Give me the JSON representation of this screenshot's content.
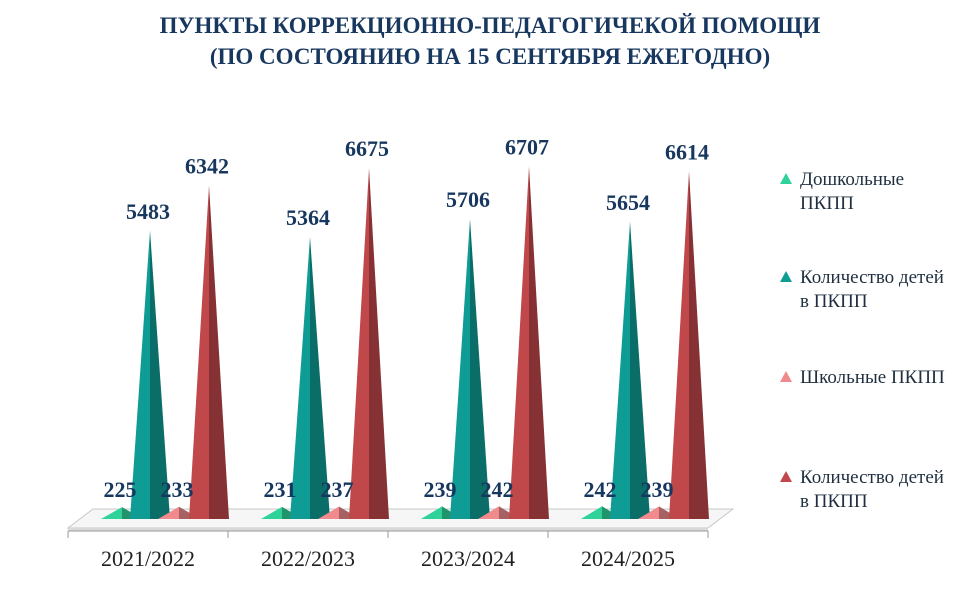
{
  "title_lines": [
    "ПУНКТЫ КОРРЕКЦИОННО-ПЕДАГОГИЧЕКОЙ ПОМОЩИ",
    "(ПО СОСТОЯНИЮ НА 15 СЕНТЯБРЯ ЕЖЕГОДНО)"
  ],
  "chart_data": {
    "type": "bar",
    "categories": [
      "2021/2022",
      "2022/2023",
      "2023/2024",
      "2024/2025"
    ],
    "series": [
      {
        "name": "Дошкольные ПКПП",
        "values": [
          225,
          231,
          239,
          242
        ],
        "color": "#2fd39a"
      },
      {
        "name": "Количество детей в ПКПП",
        "values": [
          5483,
          5364,
          5706,
          5654
        ],
        "color": "#0f9c94"
      },
      {
        "name": "Школьные ПКПП",
        "values": [
          233,
          237,
          242,
          239
        ],
        "color": "#f08a8c"
      },
      {
        "name": "Количество детей в ПКПП",
        "values": [
          6342,
          6675,
          6707,
          6614
        ],
        "color": "#c0484a"
      }
    ],
    "ylim": [
      0,
      7000
    ],
    "grid": false,
    "legend_position": "right",
    "data_labels": true,
    "bar_shape": "pyramid-3d"
  }
}
